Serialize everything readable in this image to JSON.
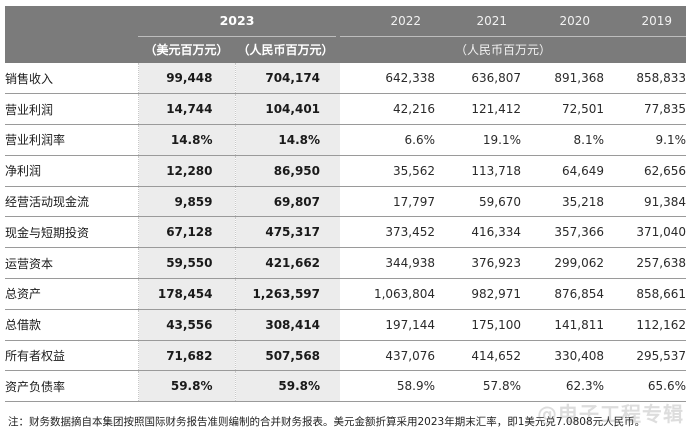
{
  "header": {
    "year_2023": "2023",
    "years": [
      "2022",
      "2021",
      "2020",
      "2019"
    ],
    "unit_usd": "（美元百万元）",
    "unit_rmb_2023": "（人民币百万元）",
    "unit_rmb": "（人民币百万元）"
  },
  "rows": [
    {
      "label": "销售收入",
      "usd": "99,448",
      "rmb": "704,174",
      "y2022": "642,338",
      "y2021": "636,807",
      "y2020": "891,368",
      "y2019": "858,833"
    },
    {
      "label": "营业利润",
      "usd": "14,744",
      "rmb": "104,401",
      "y2022": "42,216",
      "y2021": "121,412",
      "y2020": "72,501",
      "y2019": "77,835"
    },
    {
      "label": "营业利润率",
      "usd": "14.8%",
      "rmb": "14.8%",
      "y2022": "6.6%",
      "y2021": "19.1%",
      "y2020": "8.1%",
      "y2019": "9.1%"
    },
    {
      "label": "净利润",
      "usd": "12,280",
      "rmb": "86,950",
      "y2022": "35,562",
      "y2021": "113,718",
      "y2020": "64,649",
      "y2019": "62,656"
    },
    {
      "label": "经营活动现金流",
      "usd": "9,859",
      "rmb": "69,807",
      "y2022": "17,797",
      "y2021": "59,670",
      "y2020": "35,218",
      "y2019": "91,384"
    },
    {
      "label": "现金与短期投资",
      "usd": "67,128",
      "rmb": "475,317",
      "y2022": "373,452",
      "y2021": "416,334",
      "y2020": "357,366",
      "y2019": "371,040"
    },
    {
      "label": "运营资本",
      "usd": "59,550",
      "rmb": "421,662",
      "y2022": "344,938",
      "y2021": "376,923",
      "y2020": "299,062",
      "y2019": "257,638"
    },
    {
      "label": "总资产",
      "usd": "178,454",
      "rmb": "1,263,597",
      "y2022": "1,063,804",
      "y2021": "982,971",
      "y2020": "876,854",
      "y2019": "858,661"
    },
    {
      "label": "总借款",
      "usd": "43,556",
      "rmb": "308,414",
      "y2022": "197,144",
      "y2021": "175,100",
      "y2020": "141,811",
      "y2019": "112,162"
    },
    {
      "label": "所有者权益",
      "usd": "71,682",
      "rmb": "507,568",
      "y2022": "437,076",
      "y2021": "414,652",
      "y2020": "330,408",
      "y2019": "295,537"
    },
    {
      "label": "资产负债率",
      "usd": "59.8%",
      "rmb": "59.8%",
      "y2022": "58.9%",
      "y2021": "57.8%",
      "y2020": "62.3%",
      "y2019": "65.6%"
    }
  ],
  "footnote": "注：财务数据摘自本集团按照国际财务报告准则编制的合并财务报表。美元金额折算采用2023年期末汇率，即1美元兑7.0808元人民币。",
  "watermark": "@电子工程专辑"
}
